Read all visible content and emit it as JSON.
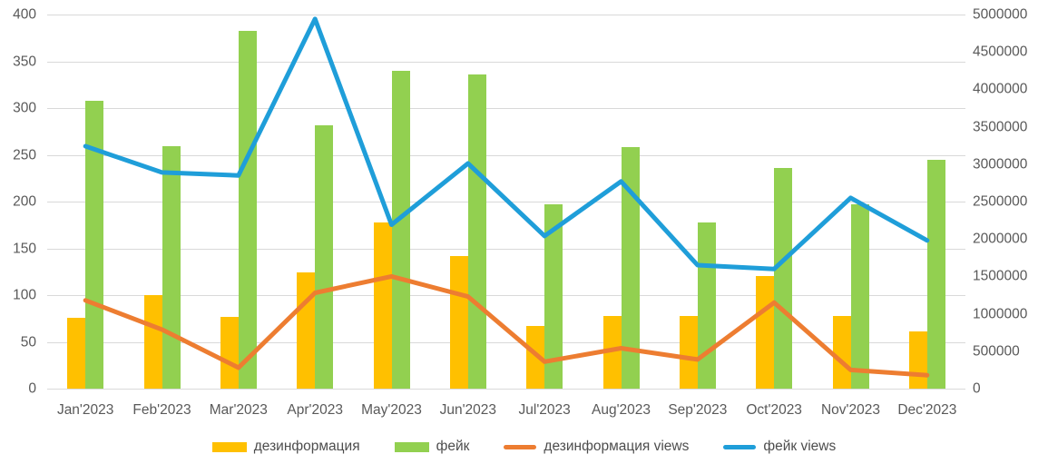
{
  "chart_data": {
    "type": "combo-bar-line",
    "title": "",
    "categories": [
      "Jan'2023",
      "Feb'2023",
      "Mar'2023",
      "Apr'2023",
      "May'2023",
      "Jun'2023",
      "Jul'2023",
      "Aug'2023",
      "Sep'2023",
      "Oct'2023",
      "Nov'2023",
      "Dec'2023"
    ],
    "series": [
      {
        "id": "disinformation",
        "name": "дезинформация",
        "type": "bar",
        "axis": "left",
        "color": "#FFC000",
        "values": [
          76,
          100,
          77,
          124,
          178,
          142,
          67,
          78,
          78,
          120,
          78,
          61
        ]
      },
      {
        "id": "fake",
        "name": "фейк",
        "type": "bar",
        "axis": "left",
        "color": "#92D050",
        "values": [
          308,
          259,
          383,
          282,
          340,
          336,
          197,
          258,
          178,
          236,
          197,
          245
        ]
      },
      {
        "id": "disinformation-views",
        "name": "дезинформация views",
        "type": "line",
        "axis": "right",
        "color": "#ED7D31",
        "values": [
          1180000,
          790000,
          280000,
          1280000,
          1500000,
          1230000,
          360000,
          540000,
          390000,
          1150000,
          250000,
          180000
        ]
      },
      {
        "id": "fake-views",
        "name": "фейк views",
        "type": "line",
        "axis": "right",
        "color": "#1F9ED9",
        "values": [
          3240000,
          2890000,
          2850000,
          4940000,
          2190000,
          3010000,
          2040000,
          2770000,
          1650000,
          1600000,
          2550000,
          1980000
        ]
      }
    ],
    "left_axis": {
      "min": 0,
      "max": 400,
      "step": 50,
      "ticks": [
        "0",
        "50",
        "100",
        "150",
        "200",
        "250",
        "300",
        "350",
        "400"
      ]
    },
    "right_axis": {
      "min": 0,
      "max": 5000000,
      "step": 500000,
      "ticks": [
        "0",
        "500000",
        "1000000",
        "1500000",
        "2000000",
        "2500000",
        "3000000",
        "3500000",
        "4000000",
        "4500000",
        "5000000"
      ]
    },
    "grid": true,
    "legend_position": "bottom",
    "legend": [
      "дезинформация",
      "фейк",
      "дезинформация views",
      "фейк views"
    ]
  },
  "colors": {
    "background": "#FFFFFF",
    "gridline": "#D9D9D9",
    "axis_text": "#595959",
    "legend_text": "#4D4D4D"
  }
}
